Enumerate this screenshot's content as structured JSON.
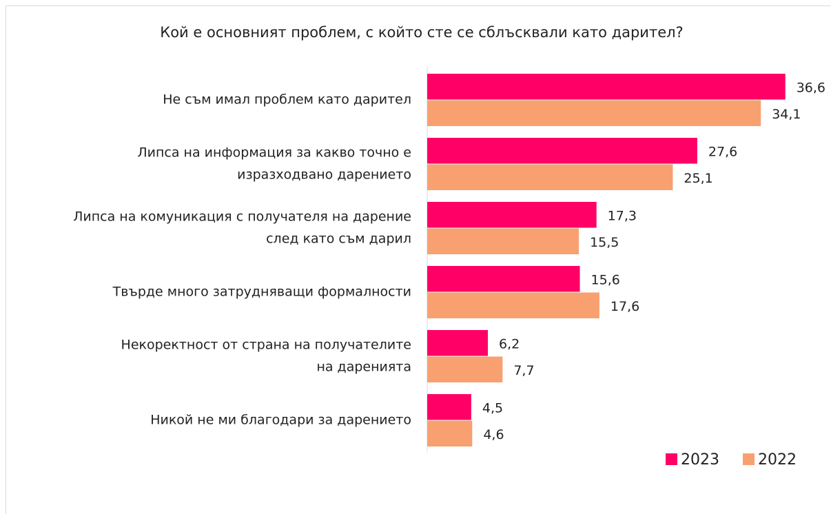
{
  "chart_data": {
    "type": "bar",
    "orientation": "horizontal",
    "title": "Кой е основният проблем, с който сте се сблъсквали като дарител?",
    "categories": [
      "Не съм имал проблем като дарител",
      "Липса на информация за какво точно е\nизразходвано дарението",
      "Липса на комуникация с получателя на дарение\nслед като съм дарил",
      "Твърде много затрудняващи формалности",
      "Некоректност от страна на получателите\nна даренията",
      "Никой не ми благодари за дарението"
    ],
    "series": [
      {
        "name": "2023",
        "color": "#ff0066",
        "values": [
          36.6,
          27.6,
          17.3,
          15.6,
          6.2,
          4.5
        ],
        "value_labels": [
          "36,6",
          "27,6",
          "17,3",
          "15,6",
          "6,2",
          "4,5"
        ]
      },
      {
        "name": "2022",
        "color": "#f9a070",
        "values": [
          34.1,
          25.1,
          15.5,
          17.6,
          7.7,
          4.6
        ],
        "value_labels": [
          "34,1",
          "25,1",
          "15,5",
          "17,6",
          "7,7",
          "4,6"
        ]
      }
    ],
    "xlim": [
      0,
      40
    ],
    "legend": "bottom-right"
  }
}
